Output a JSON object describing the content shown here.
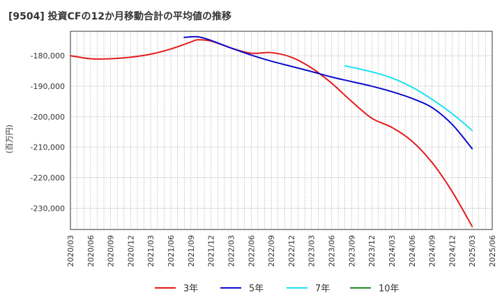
{
  "title": "[9504]  投資CFの12か月移動合計の平均値の推移",
  "chart_data": {
    "type": "line",
    "title": "[9504]  投資CFの12か月移動合計の平均値の推移",
    "ylabel": "(百万円)",
    "xlabel": "",
    "ylim": [
      -237000,
      -172000
    ],
    "yticks": [
      -180000,
      -190000,
      -200000,
      -210000,
      -220000,
      -230000
    ],
    "ytick_labels": [
      "-180,000",
      "-190,000",
      "-200,000",
      "-210,000",
      "-220,000",
      "-230,000"
    ],
    "xticks": [
      "2020/03",
      "2020/06",
      "2020/09",
      "2020/12",
      "2021/03",
      "2021/06",
      "2021/09",
      "2021/12",
      "2022/03",
      "2022/06",
      "2022/09",
      "2022/12",
      "2023/03",
      "2023/06",
      "2023/09",
      "2023/12",
      "2024/03",
      "2024/06",
      "2024/09",
      "2024/12",
      "2025/03",
      "2025/06"
    ],
    "grid": true,
    "legend_position": "bottom",
    "series": [
      {
        "name": "3年",
        "color": "#e41a1c",
        "points": [
          [
            "2020/03",
            -180000
          ],
          [
            "2020/06",
            -181000
          ],
          [
            "2020/09",
            -181000
          ],
          [
            "2020/12",
            -180500
          ],
          [
            "2021/03",
            -179500
          ],
          [
            "2021/06",
            -177800
          ],
          [
            "2021/09",
            -175500
          ],
          [
            "2021/10",
            -174800
          ],
          [
            "2021/12",
            -175200
          ],
          [
            "2022/03",
            -177500
          ],
          [
            "2022/06",
            -179200
          ],
          [
            "2022/09",
            -179000
          ],
          [
            "2022/12",
            -180500
          ],
          [
            "2023/03",
            -184000
          ],
          [
            "2023/06",
            -189000
          ],
          [
            "2023/09",
            -195000
          ],
          [
            "2023/12",
            -200500
          ],
          [
            "2024/03",
            -203500
          ],
          [
            "2024/06",
            -208000
          ],
          [
            "2024/09",
            -215000
          ],
          [
            "2024/12",
            -224500
          ],
          [
            "2025/03",
            -236000
          ]
        ]
      },
      {
        "name": "5年",
        "color": "#0a0acc",
        "points": [
          [
            "2021/08",
            -174000
          ],
          [
            "2021/10",
            -173800
          ],
          [
            "2021/12",
            -175000
          ],
          [
            "2022/03",
            -177500
          ],
          [
            "2022/06",
            -179800
          ],
          [
            "2022/09",
            -181800
          ],
          [
            "2022/12",
            -183500
          ],
          [
            "2023/03",
            -185200
          ],
          [
            "2023/06",
            -187000
          ],
          [
            "2023/09",
            -188500
          ],
          [
            "2023/12",
            -190000
          ],
          [
            "2024/03",
            -191800
          ],
          [
            "2024/06",
            -194000
          ],
          [
            "2024/09",
            -197000
          ],
          [
            "2024/12",
            -202500
          ],
          [
            "2025/03",
            -210500
          ]
        ]
      },
      {
        "name": "7年",
        "color": "#19e0f0",
        "points": [
          [
            "2023/08",
            -183300
          ],
          [
            "2023/12",
            -185300
          ],
          [
            "2024/03",
            -187300
          ],
          [
            "2024/06",
            -190300
          ],
          [
            "2024/09",
            -194300
          ],
          [
            "2024/12",
            -199000
          ],
          [
            "2025/03",
            -204500
          ]
        ]
      },
      {
        "name": "10年",
        "color": "#228b22",
        "points": []
      }
    ]
  }
}
